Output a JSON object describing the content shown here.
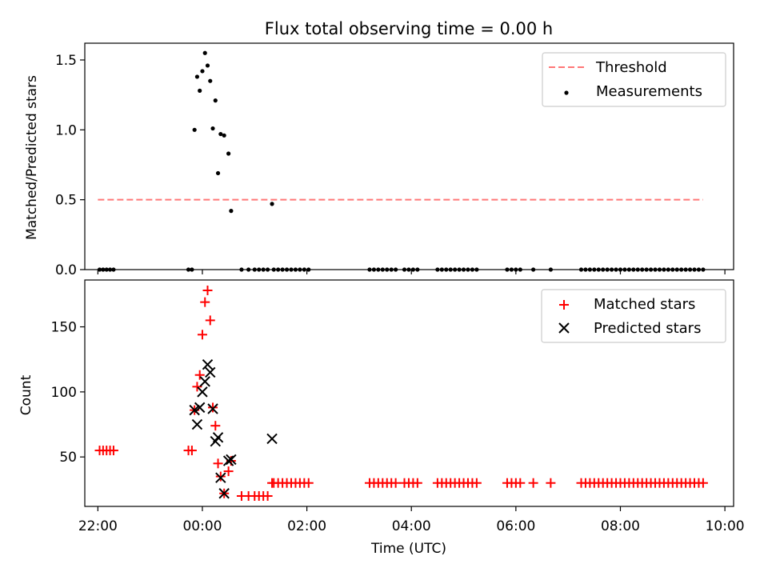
{
  "chart_data": [
    {
      "type": "scatter",
      "title": "Flux total observing time = 0.00 h",
      "xlabel": "",
      "ylabel": "Matched/Predicted stars",
      "x_unit": "hours",
      "xlim": [
        "21:45",
        "10:10"
      ],
      "ylim": [
        0,
        1.62
      ],
      "yticks": [
        0.0,
        0.5,
        1.0,
        1.5
      ],
      "ytick_labels": [
        "0.0",
        "0.5",
        "1.0",
        "1.5"
      ],
      "grid": false,
      "legend_position": "top-right",
      "threshold": {
        "name": "Threshold",
        "value": 0.5,
        "x_range": [
          "22:00",
          "09:35"
        ],
        "color": "#ff7777",
        "style": "dashed"
      },
      "series": [
        {
          "name": "Measurements",
          "color": "#000000",
          "marker": "dot",
          "points": [
            [
              "22:02",
              0
            ],
            [
              "22:06",
              0
            ],
            [
              "22:10",
              0
            ],
            [
              "22:14",
              0
            ],
            [
              "22:18",
              0
            ],
            [
              "23:44",
              0
            ],
            [
              "23:48",
              0
            ],
            [
              "23:51",
              1.0
            ],
            [
              "23:54",
              1.38
            ],
            [
              "23:57",
              1.28
            ],
            [
              "00:00",
              1.42
            ],
            [
              "00:03",
              1.55
            ],
            [
              "00:06",
              1.46
            ],
            [
              "00:09",
              1.35
            ],
            [
              "00:12",
              1.01
            ],
            [
              "00:15",
              1.21
            ],
            [
              "00:18",
              0.69
            ],
            [
              "00:21",
              0.97
            ],
            [
              "00:25",
              0.96
            ],
            [
              "00:30",
              0.83
            ],
            [
              "00:33",
              0.42
            ],
            [
              "01:20",
              0.47
            ],
            [
              "00:45",
              0
            ],
            [
              "00:53",
              0
            ],
            [
              "01:00",
              0
            ],
            [
              "01:05",
              0
            ],
            [
              "01:10",
              0
            ],
            [
              "01:15",
              0
            ],
            [
              "01:22",
              0
            ],
            [
              "01:27",
              0
            ],
            [
              "01:32",
              0
            ],
            [
              "01:37",
              0
            ],
            [
              "01:42",
              0
            ],
            [
              "01:47",
              0
            ],
            [
              "01:52",
              0
            ],
            [
              "01:57",
              0
            ],
            [
              "02:02",
              0
            ],
            [
              "03:12",
              0
            ],
            [
              "03:17",
              0
            ],
            [
              "03:22",
              0
            ],
            [
              "03:27",
              0
            ],
            [
              "03:32",
              0
            ],
            [
              "03:37",
              0
            ],
            [
              "03:42",
              0
            ],
            [
              "03:52",
              0
            ],
            [
              "03:57",
              0
            ],
            [
              "04:02",
              0
            ],
            [
              "04:07",
              0
            ],
            [
              "04:30",
              0
            ],
            [
              "04:35",
              0
            ],
            [
              "04:40",
              0
            ],
            [
              "04:45",
              0
            ],
            [
              "04:50",
              0
            ],
            [
              "04:55",
              0
            ],
            [
              "05:00",
              0
            ],
            [
              "05:05",
              0
            ],
            [
              "05:10",
              0
            ],
            [
              "05:15",
              0
            ],
            [
              "05:50",
              0
            ],
            [
              "05:55",
              0
            ],
            [
              "06:00",
              0
            ],
            [
              "06:05",
              0
            ],
            [
              "06:20",
              0
            ],
            [
              "06:40",
              0
            ],
            [
              "07:15",
              0
            ],
            [
              "07:20",
              0
            ],
            [
              "07:25",
              0
            ],
            [
              "07:30",
              0
            ],
            [
              "07:35",
              0
            ],
            [
              "07:40",
              0
            ],
            [
              "07:45",
              0
            ],
            [
              "07:50",
              0
            ],
            [
              "07:55",
              0
            ],
            [
              "08:00",
              0
            ],
            [
              "08:05",
              0
            ],
            [
              "08:10",
              0
            ],
            [
              "08:15",
              0
            ],
            [
              "08:20",
              0
            ],
            [
              "08:25",
              0
            ],
            [
              "08:30",
              0
            ],
            [
              "08:35",
              0
            ],
            [
              "08:40",
              0
            ],
            [
              "08:45",
              0
            ],
            [
              "08:50",
              0
            ],
            [
              "08:55",
              0
            ],
            [
              "09:00",
              0
            ],
            [
              "09:05",
              0
            ],
            [
              "09:10",
              0
            ],
            [
              "09:15",
              0
            ],
            [
              "09:20",
              0
            ],
            [
              "09:25",
              0
            ],
            [
              "09:30",
              0
            ],
            [
              "09:35",
              0
            ]
          ]
        }
      ]
    },
    {
      "type": "scatter",
      "title": "",
      "xlabel": "Time (UTC)",
      "ylabel": "Count",
      "x_unit": "hours",
      "xlim": [
        "21:45",
        "10:10"
      ],
      "ylim": [
        12,
        186
      ],
      "xticks": [
        "22:00",
        "00:00",
        "02:00",
        "04:00",
        "06:00",
        "08:00",
        "10:00"
      ],
      "xtick_labels": [
        "22:00",
        "00:00",
        "02:00",
        "04:00",
        "06:00",
        "08:00",
        "10:00"
      ],
      "yticks": [
        50,
        100,
        150
      ],
      "ytick_labels": [
        "50",
        "100",
        "150"
      ],
      "grid": false,
      "legend_position": "top-right",
      "series": [
        {
          "name": "Matched stars",
          "color": "#ff0000",
          "marker": "plus",
          "points": [
            [
              "22:02",
              55
            ],
            [
              "22:06",
              55
            ],
            [
              "22:10",
              55
            ],
            [
              "22:14",
              55
            ],
            [
              "22:18",
              55
            ],
            [
              "23:44",
              55
            ],
            [
              "23:48",
              55
            ],
            [
              "23:51",
              86
            ],
            [
              "23:54",
              104
            ],
            [
              "23:57",
              113
            ],
            [
              "00:00",
              144
            ],
            [
              "00:03",
              169
            ],
            [
              "00:06",
              178
            ],
            [
              "00:09",
              155
            ],
            [
              "00:12",
              88
            ],
            [
              "00:15",
              74
            ],
            [
              "00:18",
              45
            ],
            [
              "00:21",
              35
            ],
            [
              "00:25",
              22
            ],
            [
              "00:30",
              39
            ],
            [
              "00:33",
              47
            ],
            [
              "00:45",
              20
            ],
            [
              "00:53",
              20
            ],
            [
              "01:00",
              20
            ],
            [
              "01:05",
              20
            ],
            [
              "01:10",
              20
            ],
            [
              "01:15",
              20
            ],
            [
              "01:20",
              30
            ],
            [
              "01:22",
              30
            ],
            [
              "01:27",
              30
            ],
            [
              "01:32",
              30
            ],
            [
              "01:37",
              30
            ],
            [
              "01:42",
              30
            ],
            [
              "01:47",
              30
            ],
            [
              "01:52",
              30
            ],
            [
              "01:57",
              30
            ],
            [
              "02:02",
              30
            ],
            [
              "03:12",
              30
            ],
            [
              "03:17",
              30
            ],
            [
              "03:22",
              30
            ],
            [
              "03:27",
              30
            ],
            [
              "03:32",
              30
            ],
            [
              "03:37",
              30
            ],
            [
              "03:42",
              30
            ],
            [
              "03:52",
              30
            ],
            [
              "03:57",
              30
            ],
            [
              "04:02",
              30
            ],
            [
              "04:07",
              30
            ],
            [
              "04:30",
              30
            ],
            [
              "04:35",
              30
            ],
            [
              "04:40",
              30
            ],
            [
              "04:45",
              30
            ],
            [
              "04:50",
              30
            ],
            [
              "04:55",
              30
            ],
            [
              "05:00",
              30
            ],
            [
              "05:05",
              30
            ],
            [
              "05:10",
              30
            ],
            [
              "05:15",
              30
            ],
            [
              "05:50",
              30
            ],
            [
              "05:55",
              30
            ],
            [
              "06:00",
              30
            ],
            [
              "06:05",
              30
            ],
            [
              "06:20",
              30
            ],
            [
              "06:40",
              30
            ],
            [
              "07:15",
              30
            ],
            [
              "07:20",
              30
            ],
            [
              "07:25",
              30
            ],
            [
              "07:30",
              30
            ],
            [
              "07:35",
              30
            ],
            [
              "07:40",
              30
            ],
            [
              "07:45",
              30
            ],
            [
              "07:50",
              30
            ],
            [
              "07:55",
              30
            ],
            [
              "08:00",
              30
            ],
            [
              "08:05",
              30
            ],
            [
              "08:10",
              30
            ],
            [
              "08:15",
              30
            ],
            [
              "08:20",
              30
            ],
            [
              "08:25",
              30
            ],
            [
              "08:30",
              30
            ],
            [
              "08:35",
              30
            ],
            [
              "08:40",
              30
            ],
            [
              "08:45",
              30
            ],
            [
              "08:50",
              30
            ],
            [
              "08:55",
              30
            ],
            [
              "09:00",
              30
            ],
            [
              "09:05",
              30
            ],
            [
              "09:10",
              30
            ],
            [
              "09:15",
              30
            ],
            [
              "09:20",
              30
            ],
            [
              "09:25",
              30
            ],
            [
              "09:30",
              30
            ],
            [
              "09:35",
              30
            ]
          ]
        },
        {
          "name": "Predicted stars",
          "color": "#000000",
          "marker": "x",
          "points": [
            [
              "23:51",
              86
            ],
            [
              "23:54",
              75
            ],
            [
              "23:57",
              88
            ],
            [
              "00:00",
              100
            ],
            [
              "00:03",
              108
            ],
            [
              "00:06",
              121
            ],
            [
              "00:09",
              115
            ],
            [
              "00:12",
              87
            ],
            [
              "00:15",
              62
            ],
            [
              "00:18",
              65
            ],
            [
              "00:21",
              34
            ],
            [
              "00:25",
              22
            ],
            [
              "00:30",
              47
            ],
            [
              "00:33",
              48
            ],
            [
              "01:20",
              64
            ]
          ]
        }
      ]
    }
  ]
}
